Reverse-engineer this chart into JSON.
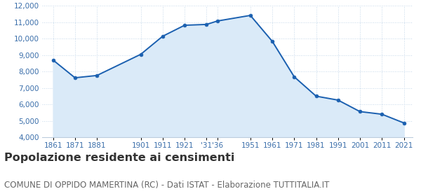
{
  "years": [
    1861,
    1871,
    1881,
    1901,
    1911,
    1921,
    1931,
    1936,
    1951,
    1961,
    1971,
    1981,
    1991,
    2001,
    2011,
    2021
  ],
  "population": [
    8700,
    7620,
    7760,
    9050,
    10150,
    10820,
    10870,
    11080,
    11420,
    9840,
    7680,
    6500,
    6260,
    5560,
    5400,
    4870
  ],
  "xtick_positions": [
    1861,
    1871,
    1881,
    1901,
    1911,
    1921,
    1931,
    1936,
    1951,
    1961,
    1971,
    1981,
    1991,
    2001,
    2011,
    2021
  ],
  "xtick_labels": [
    "1861",
    "1871",
    "1881",
    "1901",
    "1911",
    "1921",
    "'31",
    "'36",
    "1951",
    "1961",
    "1971",
    "1981",
    "1991",
    "2001",
    "2011",
    "2021"
  ],
  "line_color": "#1b60b0",
  "fill_color": "#daeaf8",
  "marker_color": "#1b60b0",
  "grid_color": "#c5d8ea",
  "background_color": "#ffffff",
  "ylim": [
    4000,
    12000
  ],
  "xlim_min": 1856,
  "xlim_max": 2025,
  "yticks": [
    4000,
    5000,
    6000,
    7000,
    8000,
    9000,
    10000,
    11000,
    12000
  ],
  "title": "Popolazione residente ai censimenti",
  "subtitle": "COMUNE DI OPPIDO MAMERTINA (RC) - Dati ISTAT - Elaborazione TUTTITALIA.IT",
  "title_fontsize": 11.5,
  "subtitle_fontsize": 8.5,
  "tick_label_color": "#3a6eaa",
  "title_color": "#333333",
  "subtitle_color": "#666666"
}
